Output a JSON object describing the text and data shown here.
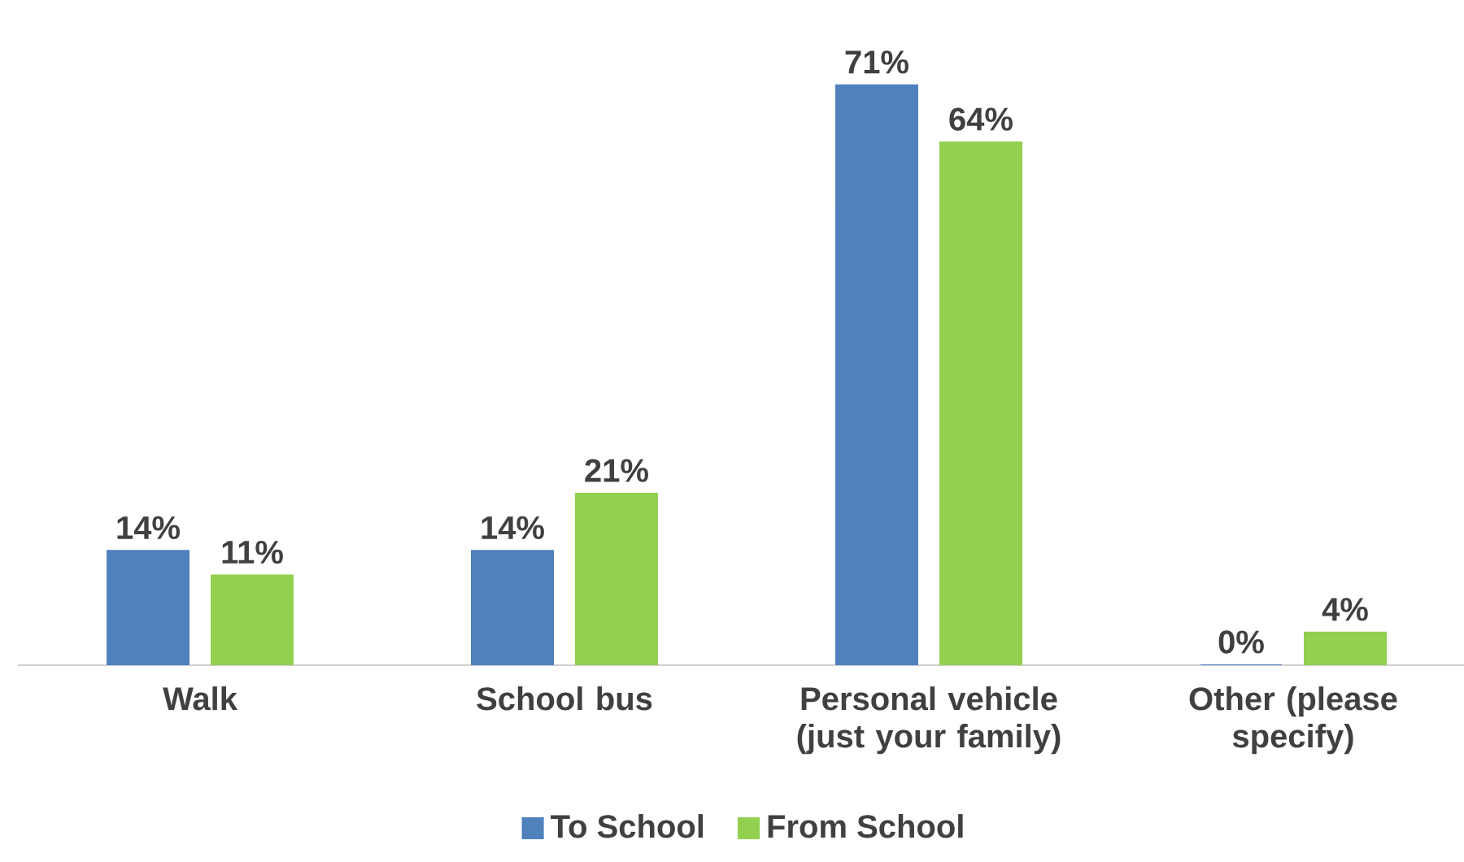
{
  "chart_data": {
    "type": "bar",
    "categories": [
      "Walk",
      "School bus",
      "Personal vehicle (just your family)",
      "Other (please specify)"
    ],
    "series": [
      {
        "name": "To School",
        "color": "#4f81bd",
        "values": [
          14,
          14,
          71,
          0
        ],
        "value_labels": [
          "14%",
          "14%",
          "71%",
          "0%"
        ]
      },
      {
        "name": "From School",
        "color": "#92d050",
        "values": [
          11,
          21,
          64,
          4
        ],
        "value_labels": [
          "11%",
          "21%",
          "64%",
          "4%"
        ]
      }
    ],
    "legend": "bottom"
  }
}
